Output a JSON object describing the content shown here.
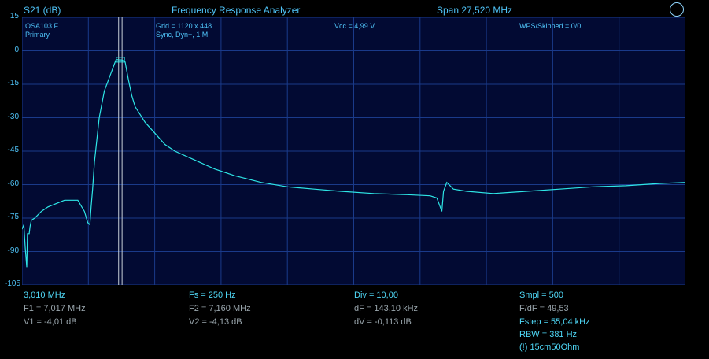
{
  "header": {
    "axis_unit": "S21 (dB)",
    "title": "Frequency Response Analyzer",
    "span": "Span 27,520 MHz"
  },
  "overlay": {
    "device": "OSA103 F",
    "mode": "Primary",
    "grid": "Grid = 1120 x 448",
    "sync": "Sync,  Dyn+, 1 M",
    "vcc": "Vcc = 4,99 V",
    "wps": "WPS/Skipped  = 0/0"
  },
  "footer": {
    "col1": {
      "f0": "3,010 MHz",
      "f1": "F1 = 7,017 MHz",
      "v1": "V1 = -4,01 dB"
    },
    "col2": {
      "fs": "Fs = 250 Hz",
      "f2": "F2 = 7,160 MHz",
      "v2": "V2 = -4,13 dB"
    },
    "col3": {
      "div": "Div = 10,00",
      "df": "dF = 143,10 kHz",
      "dv": "dV = -0,113 dB"
    },
    "col4": {
      "smpl": "Smpl = 500",
      "fdf": "F/dF = 49,53",
      "fstep": "Fstep = 55,04 kHz",
      "rbw": "RBW = 381 Hz",
      "note": "(!) 15cm50Ohm"
    }
  },
  "colors": {
    "background": "#000000",
    "plot_bg": "#020a33",
    "grid": "#1a3a8a",
    "trace": "#2ee6e6",
    "text": "#4fc3f7"
  },
  "chart_data": {
    "type": "line",
    "ylim": [
      -105,
      15
    ],
    "xlim": [
      3.01,
      30.53
    ],
    "yticks": [
      15,
      0,
      -15,
      -30,
      -45,
      -60,
      -75,
      -90,
      -105
    ],
    "grid": true,
    "series": [
      {
        "x": [
          3.01,
          3.085,
          3.142,
          3.206,
          3.236,
          3.308,
          3.34,
          3.398,
          3.536,
          3.812,
          4.086,
          4.774,
          5.325,
          5.6,
          5.737,
          5.825,
          5.875,
          5.938,
          6.013,
          6.213,
          6.426,
          6.701,
          6.839,
          6.911,
          6.989,
          7.017,
          7.16,
          7.286,
          7.424,
          7.561,
          7.698,
          8.111,
          8.524,
          8.937,
          9.349,
          10.175,
          11.0,
          11.826,
          12.926,
          14.027,
          15.128,
          16.229,
          17.604,
          18.98,
          19.944,
          20.219,
          20.357,
          20.425,
          20.494,
          20.632,
          20.907,
          21.457,
          22.559,
          23.935,
          25.31,
          26.686,
          28.064,
          29.439,
          30.53
        ],
        "y": [
          -80,
          -78,
          -88,
          -97,
          -82,
          -82,
          -79,
          -76,
          -75,
          -72,
          -70,
          -67,
          -67,
          -72,
          -77,
          -78,
          -70,
          -62,
          -50,
          -30,
          -18,
          -10,
          -6,
          -4,
          -4.0,
          -4.01,
          -4.13,
          -5,
          -13,
          -20,
          -25,
          -32,
          -37,
          -42,
          -45,
          -49,
          -53,
          -56,
          -59,
          -61,
          -62,
          -63,
          -64,
          -64.5,
          -65,
          -66,
          -70,
          -72,
          -63,
          -59,
          -62,
          -63,
          -64,
          -63,
          -62,
          -61,
          -60.5,
          -59.5,
          -59
        ]
      }
    ],
    "markers": [
      7.017,
      7.16
    ]
  }
}
